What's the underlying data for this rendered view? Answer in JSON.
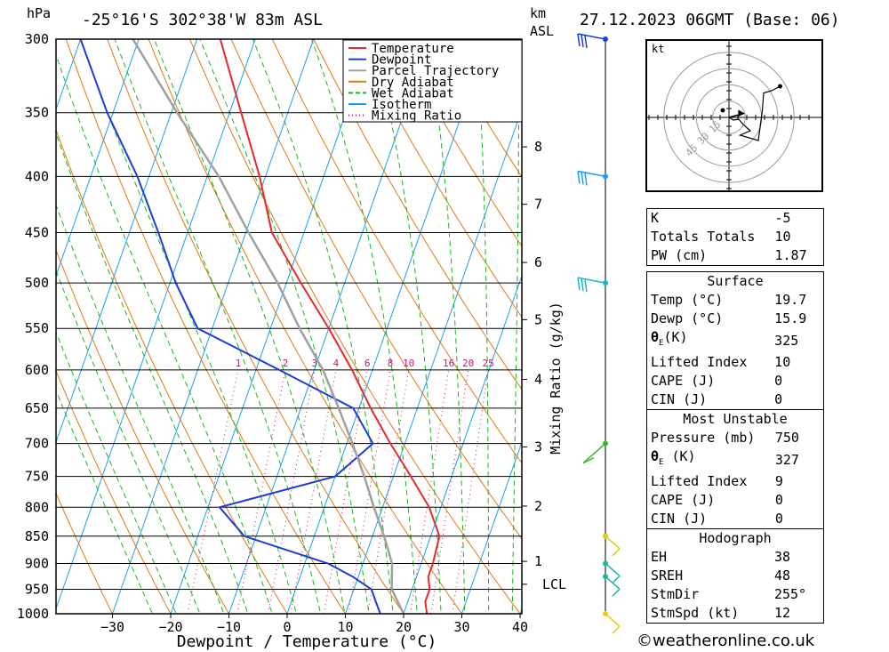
{
  "header": {
    "left_unit": "hPa",
    "location": "-25°16'S 302°38'W 83m ASL",
    "km_unit": "km",
    "asl_unit": "ASL",
    "datetime": "27.12.2023 06GMT (Base: 06)"
  },
  "chart_data": {
    "type": "line",
    "x_axis_label": "Dewpoint / Temperature (°C)",
    "x_ticks": [
      -30,
      -20,
      -10,
      0,
      10,
      20,
      30,
      40
    ],
    "x_range": [
      -40,
      40
    ],
    "y_axis_label": "hPa",
    "pressure_levels": [
      300,
      350,
      400,
      450,
      500,
      550,
      600,
      650,
      700,
      750,
      800,
      850,
      900,
      950,
      1000
    ],
    "pressure_range": [
      300,
      1000
    ],
    "height_axis_label": "km ASL",
    "height_ticks": [
      {
        "label": "8",
        "pressure": 376
      },
      {
        "label": "7",
        "pressure": 424
      },
      {
        "label": "6",
        "pressure": 479
      },
      {
        "label": "5",
        "pressure": 540
      },
      {
        "label": "4",
        "pressure": 612
      },
      {
        "label": "3",
        "pressure": 705
      },
      {
        "label": "2",
        "pressure": 798
      },
      {
        "label": "1",
        "pressure": 896
      },
      {
        "label": "LCL",
        "pressure": 940
      }
    ],
    "mixing_ratio_axis_label": "Mixing Ratio (g/kg)",
    "mixing_ratio_values": [
      1,
      2,
      3,
      4,
      6,
      8,
      10,
      16,
      20,
      25
    ],
    "mixing_ratio_labels": [
      "1",
      "2",
      "3",
      "4",
      "6",
      "8",
      "10",
      "16",
      "20",
      "25"
    ],
    "legend": {
      "position": "top-center",
      "entries": [
        {
          "name": "Temperature",
          "color": "#e8282c"
        },
        {
          "name": "Dewpoint",
          "color": "#1f3cd6"
        },
        {
          "name": "Parcel Trajectory",
          "color": "#a0a0a0"
        },
        {
          "name": "Dry Adiabat",
          "color": "#e07a10"
        },
        {
          "name": "Wet Adiabat",
          "color": "#17b81a"
        },
        {
          "name": "Isotherm",
          "color": "#1a9ff2"
        },
        {
          "name": "Mixing Ratio",
          "color": "#d0107a"
        }
      ]
    },
    "series": [
      {
        "name": "Temperature",
        "points": [
          [
            1000,
            24.0
          ],
          [
            975,
            23.0
          ],
          [
            950,
            23.0
          ],
          [
            925,
            22.0
          ],
          [
            900,
            22.0
          ],
          [
            850,
            21.5
          ],
          [
            800,
            18.0
          ],
          [
            750,
            13.0
          ],
          [
            700,
            7.5
          ],
          [
            650,
            2.0
          ],
          [
            600,
            -3.5
          ],
          [
            550,
            -10.0
          ],
          [
            500,
            -17.5
          ],
          [
            450,
            -25.5
          ],
          [
            400,
            -31.0
          ],
          [
            350,
            -38.0
          ],
          [
            300,
            -46.0
          ]
        ]
      },
      {
        "name": "Dewpoint",
        "points": [
          [
            1000,
            16.0
          ],
          [
            975,
            14.5
          ],
          [
            950,
            13.0
          ],
          [
            925,
            9.0
          ],
          [
            900,
            4.0
          ],
          [
            850,
            -12.0
          ],
          [
            800,
            -18.0
          ],
          [
            750,
            0.0
          ],
          [
            700,
            4.5
          ],
          [
            650,
            -1.0
          ],
          [
            600,
            -16.0
          ],
          [
            550,
            -32.5
          ],
          [
            500,
            -39.0
          ],
          [
            450,
            -45.0
          ],
          [
            400,
            -52.0
          ],
          [
            350,
            -61.0
          ],
          [
            300,
            -70.0
          ]
        ]
      },
      {
        "name": "Parcel Trajectory",
        "points": [
          [
            1000,
            20.0
          ],
          [
            950,
            16.5
          ],
          [
            900,
            15.0
          ],
          [
            850,
            12.0
          ],
          [
            800,
            8.5
          ],
          [
            750,
            5.0
          ],
          [
            700,
            1.0
          ],
          [
            650,
            -3.5
          ],
          [
            600,
            -8.5
          ],
          [
            550,
            -15.0
          ],
          [
            500,
            -21.5
          ],
          [
            450,
            -29.5
          ],
          [
            400,
            -38.0
          ],
          [
            350,
            -49.0
          ],
          [
            300,
            -61.0
          ]
        ]
      }
    ],
    "wind_barbs": [
      {
        "pressure": 300,
        "color": "#1f3cd6"
      },
      {
        "pressure": 400,
        "color": "#1a9ff2"
      },
      {
        "pressure": 500,
        "color": "#1ab8c8"
      },
      {
        "pressure": 700,
        "color": "#3ab82a"
      },
      {
        "pressure": 850,
        "color": "#d8d010"
      },
      {
        "pressure": 900,
        "color": "#1ab8a0"
      },
      {
        "pressure": 925,
        "color": "#1ab8a0"
      },
      {
        "pressure": 1000,
        "color": "#e8d010"
      }
    ]
  },
  "hodograph": {
    "unit_label": "kt",
    "ring_labels": [
      "15",
      "30",
      "45"
    ],
    "trace": [
      [
        0,
        0
      ],
      [
        -0.6,
        1.0
      ],
      [
        -0.4,
        2.2
      ],
      [
        -1.6,
        3.2
      ],
      [
        -3.0,
        4.8
      ],
      [
        -4.0,
        2.5
      ],
      [
        -5.2,
        6.6
      ],
      [
        1.5,
        7.5
      ],
      [
        5.5,
        7.8
      ],
      [
        6.0,
        9.6
      ],
      [
        7.0,
        11.5
      ]
    ],
    "storm_motion": {
      "dir": 255,
      "speed": 12
    }
  },
  "indices": {
    "general": [
      {
        "label": "K",
        "value": "-5"
      },
      {
        "label": "Totals Totals",
        "value": "10"
      },
      {
        "label": "PW (cm)",
        "value": "1.87"
      }
    ],
    "surface_title": "Surface",
    "surface": [
      {
        "label": "Temp (°C)",
        "value": "19.7"
      },
      {
        "label": "Dewp (°C)",
        "value": "15.9"
      },
      {
        "label": "θE(K)",
        "value": "325"
      },
      {
        "label": "Lifted Index",
        "value": "10"
      },
      {
        "label": "CAPE (J)",
        "value": "0"
      },
      {
        "label": "CIN (J)",
        "value": "0"
      }
    ],
    "mu_title": "Most Unstable",
    "most_unstable": [
      {
        "label": "Pressure (mb)",
        "value": "750"
      },
      {
        "label": "θE (K)",
        "value": "327"
      },
      {
        "label": "Lifted Index",
        "value": "9"
      },
      {
        "label": "CAPE (J)",
        "value": "0"
      },
      {
        "label": "CIN (J)",
        "value": "0"
      }
    ],
    "hodo_title": "Hodograph",
    "hodograph": [
      {
        "label": "EH",
        "value": "38"
      },
      {
        "label": "SREH",
        "value": "48"
      },
      {
        "label": "StmDir",
        "value": "255°"
      },
      {
        "label": "StmSpd (kt)",
        "value": "12"
      }
    ]
  },
  "footer": {
    "copyright": "©weatheronline.co.uk"
  }
}
